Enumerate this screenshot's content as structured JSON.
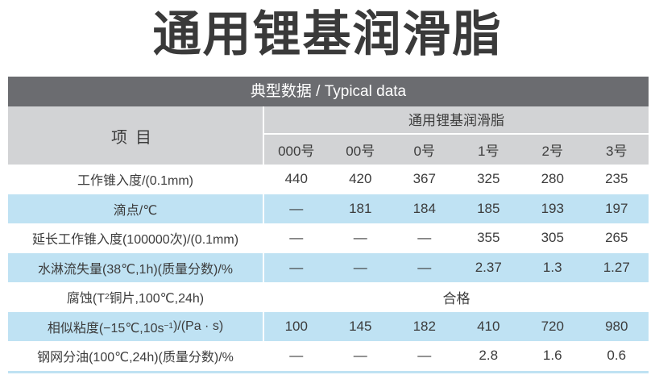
{
  "title": "通用锂基润滑脂",
  "table": {
    "band_label": "典型数据 /  Typical data",
    "item_header": "项目",
    "product_header": "通用锂基润滑脂",
    "grades": [
      "000号",
      "00号",
      "0号",
      "1号",
      "2号",
      "3号"
    ],
    "rows": [
      {
        "label": "工作锥入度/(0.1mm)",
        "values": [
          "440",
          "420",
          "367",
          "325",
          "280",
          "235"
        ],
        "shaded": false
      },
      {
        "label": "滴点/℃",
        "values": [
          "—",
          "181",
          "184",
          "185",
          "193",
          "197"
        ],
        "shaded": true
      },
      {
        "label": "延长工作锥入度(100000次)/(0.1mm)",
        "values": [
          "—",
          "—",
          "—",
          "355",
          "305",
          "265"
        ],
        "shaded": false
      },
      {
        "label": "水淋流失量(38℃,1h)(质量分数)/%",
        "values": [
          "—",
          "—",
          "—",
          "2.37",
          "1.3",
          "1.27"
        ],
        "shaded": true
      },
      {
        "label_pre": "腐蚀(T",
        "label_sub": "2",
        "label_post": "铜片,100℃,24h)",
        "span_value": "合格",
        "shaded": false
      },
      {
        "label_pre": "相似粘度(−15℃,10s",
        "label_sup": "−1",
        "label_post": ")/(Pa · s)",
        "values": [
          "100",
          "145",
          "182",
          "410",
          "720",
          "980"
        ],
        "shaded": true
      },
      {
        "label": "钢网分油(100℃,24h)(质量分数)/%",
        "values": [
          "—",
          "—",
          "—",
          "2.8",
          "1.6",
          "0.6"
        ],
        "shaded": false
      }
    ]
  },
  "colors": {
    "band": "#6b6c70",
    "header": "#d2d3d5",
    "row_shade": "#bfe2f3",
    "text": "#3c3c3c"
  }
}
